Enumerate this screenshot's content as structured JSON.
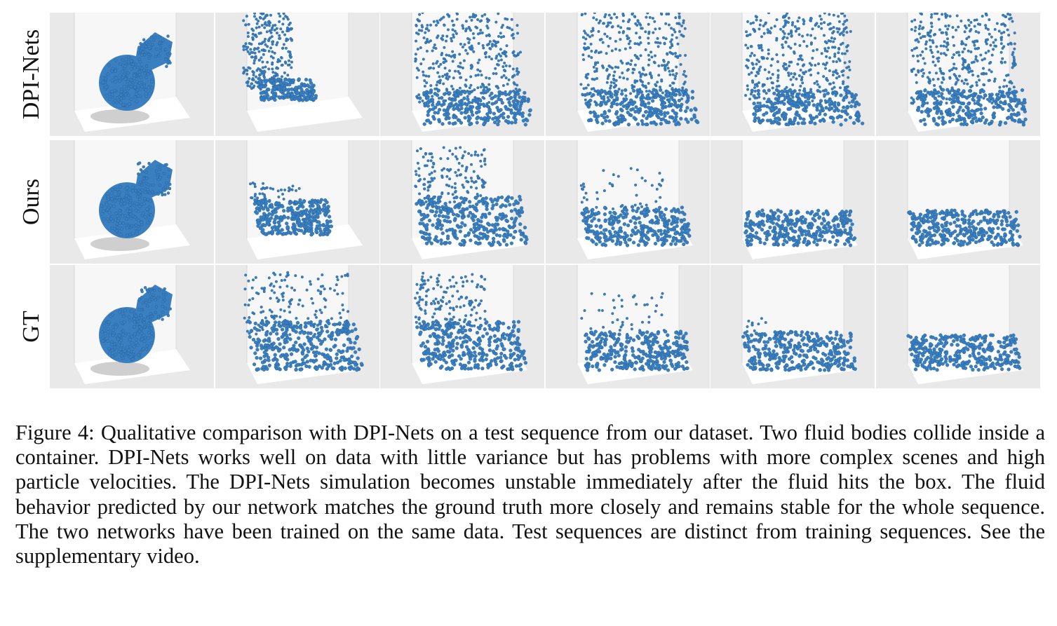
{
  "rows": [
    {
      "label": "DPI-Nets",
      "frames": [
        "bodies",
        "splash",
        "chaos",
        "chaos",
        "chaos",
        "chaos"
      ]
    },
    {
      "label": "Ours",
      "frames": [
        "bodies",
        "wave",
        "splash-high",
        "settling",
        "flat",
        "flat"
      ]
    },
    {
      "label": "GT",
      "frames": [
        "bodies",
        "splash-wide",
        "splash-high",
        "settling",
        "flat-wave",
        "flat"
      ]
    }
  ],
  "colors": {
    "particle": "#3a7fc0",
    "particle_dark": "#1f5d97",
    "background": "#e9e9e9",
    "wall": "#f7f7f7",
    "floor": "#ffffff"
  },
  "caption": {
    "label": "Figure 4:",
    "text": " Qualitative comparison with DPI-Nets on a test sequence from our dataset.  Two fluid bodies collide inside a container. DPI-Nets works well on data with little variance but has problems with more complex scenes and high particle velocities. The DPI-Nets simulation becomes unstable immediately after the fluid hits the box.  The fluid behavior predicted by our network matches the ground truth more closely and remains stable for the whole sequence. The two networks have been trained on the same data. Test sequences are distinct from training sequences. See the supplementary video."
  }
}
